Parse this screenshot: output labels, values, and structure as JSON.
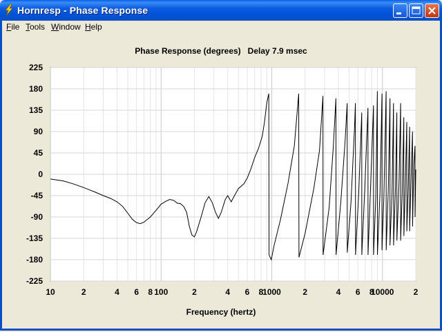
{
  "window": {
    "title": "Hornresp - Phase Response"
  },
  "menu": [
    {
      "label": "File"
    },
    {
      "label": "Tools"
    },
    {
      "label": "Window"
    },
    {
      "label": "Help"
    }
  ],
  "chart_data": {
    "type": "line",
    "title": "Phase Response (degrees)   Delay 7.9 msec",
    "xlabel": "Frequency (hertz)",
    "ylabel": "",
    "x_scale": "log",
    "xlim": [
      10,
      20000
    ],
    "ylim": [
      -225,
      225
    ],
    "grid": true,
    "y_ticks": [
      {
        "value": 225,
        "label": "225"
      },
      {
        "value": 180,
        "label": "180"
      },
      {
        "value": 135,
        "label": "135"
      },
      {
        "value": 90,
        "label": "90"
      },
      {
        "value": 45,
        "label": "45"
      },
      {
        "value": 0,
        "label": "0"
      },
      {
        "value": -45,
        "label": "-45"
      },
      {
        "value": -90,
        "label": "-90"
      },
      {
        "value": -135,
        "label": "-135"
      },
      {
        "value": -180,
        "label": "-180"
      },
      {
        "value": -225,
        "label": "-225"
      }
    ],
    "x_ticks": [
      {
        "value": 10,
        "label": "10"
      },
      {
        "value": 20,
        "label": "2"
      },
      {
        "value": 40,
        "label": "4"
      },
      {
        "value": 60,
        "label": "6"
      },
      {
        "value": 80,
        "label": "8"
      },
      {
        "value": 100,
        "label": "100"
      },
      {
        "value": 200,
        "label": "2"
      },
      {
        "value": 400,
        "label": "4"
      },
      {
        "value": 600,
        "label": "6"
      },
      {
        "value": 800,
        "label": "8"
      },
      {
        "value": 1000,
        "label": "1000"
      },
      {
        "value": 2000,
        "label": "2"
      },
      {
        "value": 4000,
        "label": "4"
      },
      {
        "value": 6000,
        "label": "6"
      },
      {
        "value": 8000,
        "label": "8"
      },
      {
        "value": 10000,
        "label": "10000"
      },
      {
        "value": 20000,
        "label": "2"
      }
    ],
    "series": [
      {
        "color": "#000000",
        "points": [
          [
            10,
            -10
          ],
          [
            13,
            -14
          ],
          [
            16,
            -20
          ],
          [
            20,
            -28
          ],
          [
            25,
            -37
          ],
          [
            30,
            -45
          ],
          [
            35,
            -51
          ],
          [
            40,
            -58
          ],
          [
            45,
            -68
          ],
          [
            50,
            -82
          ],
          [
            55,
            -95
          ],
          [
            60,
            -102
          ],
          [
            65,
            -104
          ],
          [
            70,
            -101
          ],
          [
            80,
            -90
          ],
          [
            90,
            -76
          ],
          [
            100,
            -63
          ],
          [
            110,
            -57
          ],
          [
            120,
            -53
          ],
          [
            130,
            -55
          ],
          [
            140,
            -61
          ],
          [
            150,
            -62
          ],
          [
            160,
            -68
          ],
          [
            170,
            -80
          ],
          [
            180,
            -110
          ],
          [
            190,
            -128
          ],
          [
            200,
            -132
          ],
          [
            210,
            -120
          ],
          [
            230,
            -90
          ],
          [
            250,
            -60
          ],
          [
            270,
            -47
          ],
          [
            290,
            -60
          ],
          [
            310,
            -80
          ],
          [
            330,
            -93
          ],
          [
            350,
            -80
          ],
          [
            380,
            -53
          ],
          [
            400,
            -45
          ],
          [
            430,
            -58
          ],
          [
            460,
            -45
          ],
          [
            500,
            -30
          ],
          [
            560,
            -20
          ],
          [
            600,
            -8
          ],
          [
            650,
            12
          ],
          [
            700,
            35
          ],
          [
            760,
            55
          ],
          [
            820,
            80
          ],
          [
            860,
            110
          ],
          [
            900,
            150
          ],
          [
            940,
            170
          ],
          [
            945,
            -170
          ],
          [
            990,
            -180
          ],
          [
            1050,
            -150
          ],
          [
            1200,
            -95
          ],
          [
            1400,
            -20
          ],
          [
            1600,
            60
          ],
          [
            1750,
            170
          ],
          [
            1760,
            -175
          ],
          [
            2000,
            -125
          ],
          [
            2400,
            -30
          ],
          [
            2700,
            50
          ],
          [
            2900,
            165
          ],
          [
            2910,
            -170
          ],
          [
            3300,
            -70
          ],
          [
            3600,
            60
          ],
          [
            3800,
            160
          ],
          [
            3810,
            -170
          ],
          [
            4200,
            -60
          ],
          [
            4600,
            70
          ],
          [
            4800,
            150
          ],
          [
            4810,
            -165
          ],
          [
            5200,
            -60
          ],
          [
            5600,
            100
          ],
          [
            5700,
            150
          ],
          [
            5710,
            -170
          ],
          [
            6100,
            -40
          ],
          [
            6500,
            130
          ],
          [
            6510,
            -170
          ],
          [
            6900,
            -40
          ],
          [
            7400,
            140
          ],
          [
            7410,
            -170
          ],
          [
            7800,
            -30
          ],
          [
            8300,
            145
          ],
          [
            8310,
            -170
          ],
          [
            8700,
            -50
          ],
          [
            9000,
            175
          ],
          [
            9010,
            -170
          ],
          [
            9500,
            -40
          ],
          [
            9900,
            170
          ],
          [
            9910,
            -160
          ],
          [
            10300,
            -50
          ],
          [
            10800,
            175
          ],
          [
            10810,
            -160
          ],
          [
            11300,
            -30
          ],
          [
            11700,
            160
          ],
          [
            11710,
            -150
          ],
          [
            12200,
            -40
          ],
          [
            12600,
            150
          ],
          [
            12610,
            -150
          ],
          [
            13100,
            -30
          ],
          [
            13500,
            130
          ],
          [
            13510,
            -140
          ],
          [
            14100,
            -20
          ],
          [
            14600,
            150
          ],
          [
            14610,
            -140
          ],
          [
            15100,
            -40
          ],
          [
            15600,
            120
          ],
          [
            15610,
            -130
          ],
          [
            16100,
            -20
          ],
          [
            16600,
            110
          ],
          [
            16610,
            -120
          ],
          [
            17100,
            -30
          ],
          [
            17600,
            100
          ],
          [
            17610,
            -120
          ],
          [
            18200,
            0
          ],
          [
            18700,
            90
          ],
          [
            18710,
            -110
          ],
          [
            19200,
            20
          ],
          [
            19700,
            60
          ],
          [
            19710,
            -90
          ],
          [
            20000,
            10
          ]
        ]
      }
    ]
  }
}
